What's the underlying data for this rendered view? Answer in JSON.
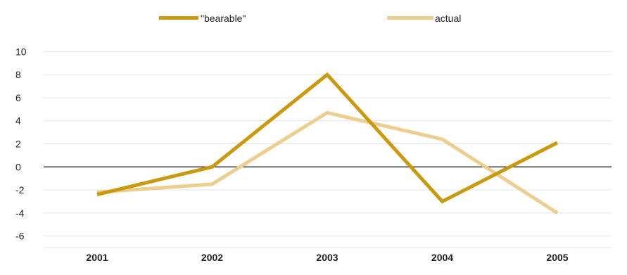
{
  "chart_data": {
    "type": "line",
    "title": "",
    "xlabel": "",
    "ylabel": "",
    "categories": [
      "2001",
      "2002",
      "2003",
      "2004",
      "2005"
    ],
    "ylim": [
      -7,
      11
    ],
    "yticks": [
      10,
      8,
      6,
      4,
      2,
      0,
      -2,
      -4,
      -6
    ],
    "ytick_labels": [
      "10",
      "8",
      "6",
      "4",
      "2",
      "0",
      "-2",
      "-4",
      "-6"
    ],
    "grid": true,
    "legend_position": "top",
    "series": [
      {
        "name": "\"bearable\"",
        "color": "#c9990f",
        "values": [
          -2.4,
          0.0,
          8.0,
          -3.0,
          2.1
        ]
      },
      {
        "name": "actual",
        "color": "#eccf90",
        "values": [
          -2.2,
          -1.5,
          4.7,
          2.4,
          -4.0
        ]
      }
    ]
  }
}
